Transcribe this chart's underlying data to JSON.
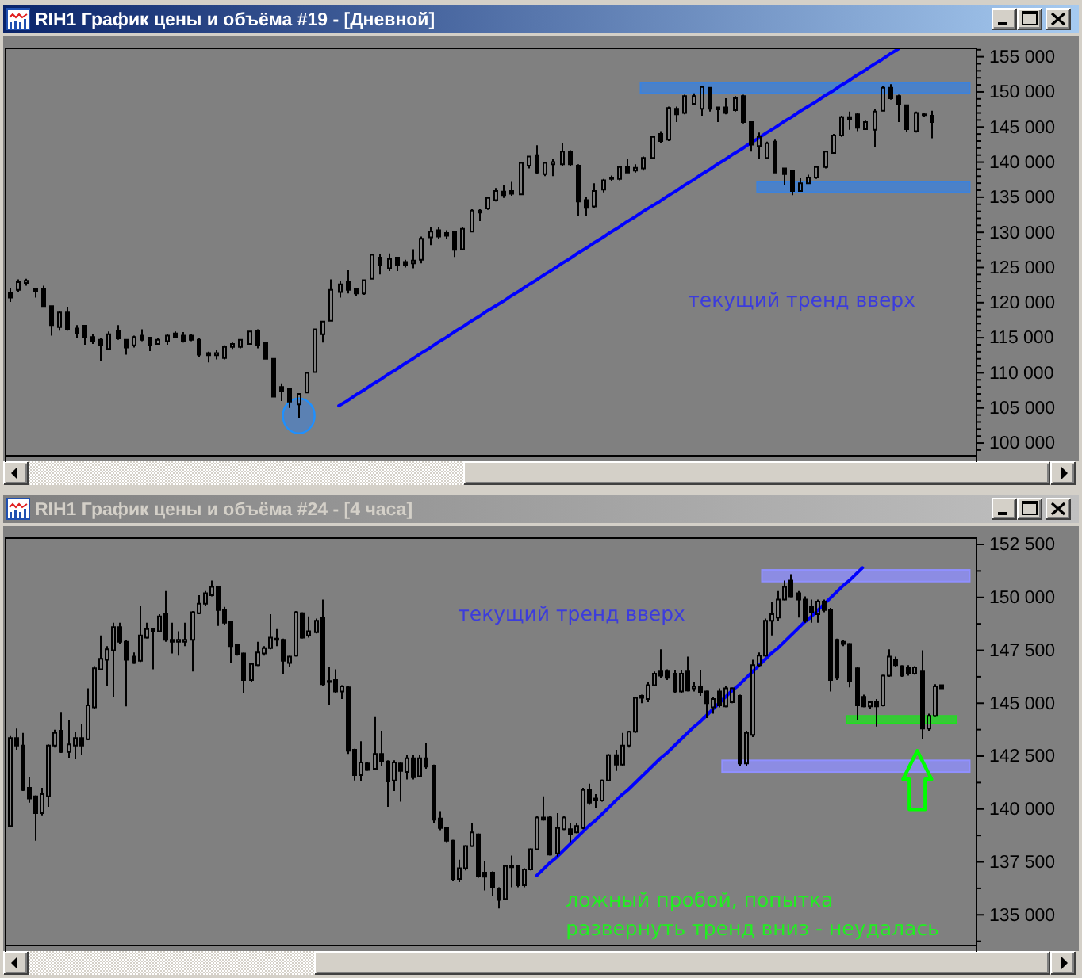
{
  "chart_data": [
    {
      "type": "candlestick",
      "title": "RIH1 График цены и объёма #19 - [Дневной]",
      "color": "#000000",
      "categories": [
        null,
        null,
        null,
        null,
        null,
        null,
        null,
        null,
        null,
        null,
        null,
        null,
        null,
        null,
        null,
        null,
        null,
        null,
        null,
        null,
        null,
        null,
        null,
        null,
        null,
        null,
        null,
        null,
        null,
        null,
        null,
        null,
        null,
        null,
        null,
        null,
        null,
        null,
        null,
        null,
        null,
        null,
        null,
        null,
        null,
        null,
        null,
        null,
        null,
        null,
        null,
        null,
        null,
        null,
        null,
        null,
        null,
        null,
        null,
        null,
        null,
        null,
        null,
        null,
        null,
        null,
        null,
        null,
        null,
        null,
        null,
        null,
        null,
        null,
        null,
        null,
        null,
        null,
        null,
        null,
        null,
        null,
        null,
        null,
        null,
        null,
        null,
        null,
        null,
        null,
        null,
        null,
        null,
        null,
        null,
        null,
        null,
        null,
        null,
        null,
        null,
        null,
        null,
        null,
        null,
        null,
        null,
        null,
        null,
        null,
        null,
        null,
        null,
        null,
        null,
        null,
        null,
        null
      ],
      "ohlc": [
        [
          121400,
          122000,
          120100,
          120700
        ],
        [
          121800,
          123300,
          121500,
          122900
        ],
        [
          122800,
          123400,
          122400,
          123100
        ],
        [
          121900,
          121900,
          120700,
          121600
        ],
        [
          122000,
          122400,
          119400,
          119500
        ],
        [
          119500,
          119600,
          115300,
          116800
        ],
        [
          116500,
          118800,
          116000,
          118600
        ],
        [
          118600,
          119400,
          116000,
          116200
        ],
        [
          116300,
          116800,
          114900,
          115600
        ],
        [
          116700,
          116800,
          114000,
          115000
        ],
        [
          115100,
          115500,
          114100,
          114500
        ],
        [
          114700,
          114900,
          111700,
          114000
        ],
        [
          113400,
          115900,
          113300,
          115500
        ],
        [
          116000,
          116800,
          114700,
          114900
        ],
        [
          114700,
          114800,
          112600,
          113600
        ],
        [
          113900,
          115300,
          113600,
          115100
        ],
        [
          115300,
          116200,
          114500,
          114700
        ],
        [
          115000,
          115100,
          113100,
          114000
        ],
        [
          114100,
          114900,
          114000,
          114700
        ],
        [
          114500,
          115500,
          114000,
          115300
        ],
        [
          115600,
          115900,
          114900,
          115000
        ],
        [
          115300,
          115800,
          114300,
          114500
        ],
        [
          115300,
          115500,
          114500,
          114700
        ],
        [
          114700,
          114900,
          112300,
          112600
        ],
        [
          112800,
          113000,
          111500,
          112500
        ],
        [
          112500,
          113200,
          111900,
          112800
        ],
        [
          112100,
          113900,
          111900,
          113700
        ],
        [
          113700,
          114300,
          113400,
          114100
        ],
        [
          113700,
          114800,
          113500,
          114700
        ],
        [
          114100,
          116000,
          114000,
          115900
        ],
        [
          116000,
          116200,
          113500,
          114000
        ],
        [
          114300,
          114400,
          111900,
          112000
        ],
        [
          112000,
          112100,
          106500,
          106600
        ],
        [
          108000,
          108500,
          106000,
          107400
        ],
        [
          107700,
          107900,
          105000,
          105900
        ],
        [
          105500,
          107100,
          103600,
          107000
        ],
        [
          107200,
          110100,
          107100,
          110000
        ],
        [
          110100,
          116300,
          110000,
          116200
        ],
        [
          115500,
          117400,
          114300,
          117300
        ],
        [
          117400,
          123300,
          117300,
          121800
        ],
        [
          121500,
          123100,
          120700,
          122600
        ],
        [
          123000,
          124600,
          121300,
          121800
        ],
        [
          121900,
          122000,
          120900,
          121300
        ],
        [
          121300,
          123300,
          121100,
          123200
        ],
        [
          123400,
          126900,
          123300,
          126800
        ],
        [
          126400,
          126900,
          124000,
          125400
        ],
        [
          124900,
          127000,
          124500,
          126200
        ],
        [
          126400,
          126500,
          124500,
          125400
        ],
        [
          125800,
          126100,
          125000,
          125400
        ],
        [
          125600,
          127600,
          124900,
          126000
        ],
        [
          126100,
          129400,
          125600,
          129100
        ],
        [
          129300,
          130700,
          128200,
          130100
        ],
        [
          130300,
          130800,
          129100,
          129400
        ],
        [
          129900,
          130300,
          129000,
          129500
        ],
        [
          130100,
          130200,
          126500,
          127500
        ],
        [
          127600,
          130700,
          127500,
          130500
        ],
        [
          130100,
          133300,
          130000,
          133100
        ],
        [
          133100,
          133300,
          131600,
          132800
        ],
        [
          133400,
          135000,
          133200,
          134900
        ],
        [
          134600,
          136300,
          134400,
          135900
        ],
        [
          135800,
          136800,
          134900,
          135300
        ],
        [
          135900,
          137200,
          135200,
          135500
        ],
        [
          135400,
          140000,
          135300,
          139900
        ],
        [
          139500,
          140900,
          139100,
          140800
        ],
        [
          141000,
          142400,
          138300,
          138500
        ],
        [
          138300,
          140000,
          138000,
          139900
        ],
        [
          139700,
          140400,
          138000,
          140000
        ],
        [
          139700,
          142700,
          139500,
          141500
        ],
        [
          141500,
          141700,
          139500,
          139700
        ],
        [
          139500,
          139700,
          132400,
          134400
        ],
        [
          134600,
          135000,
          132400,
          133500
        ],
        [
          133700,
          137000,
          133500,
          135900
        ],
        [
          136100,
          137600,
          135700,
          137400
        ],
        [
          137600,
          138100,
          137300,
          137800
        ],
        [
          137600,
          139400,
          137400,
          139300
        ],
        [
          139300,
          140400,
          138400,
          138500
        ],
        [
          138800,
          139700,
          138500,
          139200
        ],
        [
          139100,
          140800,
          138800,
          140600
        ],
        [
          140600,
          143800,
          140400,
          143600
        ],
        [
          144000,
          144400,
          142700,
          143000
        ],
        [
          143200,
          147900,
          143000,
          147700
        ],
        [
          147600,
          147900,
          145700,
          146800
        ],
        [
          147000,
          149600,
          146800,
          149400
        ],
        [
          148300,
          149800,
          148100,
          149400
        ],
        [
          147600,
          150900,
          146600,
          150700
        ],
        [
          150600,
          150700,
          147200,
          147600
        ],
        [
          147800,
          147900,
          145700,
          147500
        ],
        [
          147800,
          149100,
          146800,
          147000
        ],
        [
          147400,
          149400,
          147200,
          149100
        ],
        [
          149400,
          149600,
          145500,
          145700
        ],
        [
          145700,
          145800,
          141500,
          142500
        ],
        [
          142300,
          144200,
          140400,
          143600
        ],
        [
          140600,
          142900,
          140400,
          142700
        ],
        [
          142900,
          143200,
          138400,
          138500
        ],
        [
          139100,
          139200,
          136700,
          138300
        ],
        [
          138800,
          138900,
          135300,
          135900
        ],
        [
          135900,
          137800,
          135800,
          137000
        ],
        [
          137000,
          138200,
          136900,
          137800
        ],
        [
          137800,
          139500,
          137600,
          139300
        ],
        [
          139300,
          141600,
          139100,
          141500
        ],
        [
          141300,
          144000,
          141200,
          143800
        ],
        [
          143800,
          146600,
          143600,
          146400
        ],
        [
          146400,
          147200,
          144600,
          146100
        ],
        [
          146800,
          147000,
          144400,
          144900
        ],
        [
          144700,
          145900,
          144600,
          145700
        ],
        [
          144600,
          147600,
          142100,
          147200
        ],
        [
          147300,
          150900,
          147200,
          150600
        ],
        [
          150600,
          151100,
          148900,
          149100
        ],
        [
          149400,
          149600,
          145700,
          148200
        ],
        [
          148100,
          148200,
          144300,
          144700
        ],
        [
          144400,
          147200,
          144200,
          147000
        ],
        [
          146700,
          147000,
          146400,
          146800
        ],
        [
          146600,
          147300,
          143400,
          145700
        ],
        null,
        null,
        null,
        null,
        null
      ],
      "ylim": [
        98200,
        156200
      ],
      "yticks": [
        {
          "value": 99000,
          "label": null
        },
        {
          "value": 100000,
          "label": "100 000"
        },
        {
          "value": 101000,
          "label": null
        },
        {
          "value": 102000,
          "label": null
        },
        {
          "value": 103000,
          "label": null
        },
        {
          "value": 104000,
          "label": null
        },
        {
          "value": 105000,
          "label": "105 000"
        },
        {
          "value": 106000,
          "label": null
        },
        {
          "value": 107000,
          "label": null
        },
        {
          "value": 108000,
          "label": null
        },
        {
          "value": 109000,
          "label": null
        },
        {
          "value": 110000,
          "label": "110 000"
        },
        {
          "value": 111000,
          "label": null
        },
        {
          "value": 112000,
          "label": null
        },
        {
          "value": 113000,
          "label": null
        },
        {
          "value": 114000,
          "label": null
        },
        {
          "value": 115000,
          "label": "115 000"
        },
        {
          "value": 116000,
          "label": null
        },
        {
          "value": 117000,
          "label": null
        },
        {
          "value": 118000,
          "label": null
        },
        {
          "value": 119000,
          "label": null
        },
        {
          "value": 120000,
          "label": "120 000"
        },
        {
          "value": 121000,
          "label": null
        },
        {
          "value": 122000,
          "label": null
        },
        {
          "value": 123000,
          "label": null
        },
        {
          "value": 124000,
          "label": null
        },
        {
          "value": 125000,
          "label": "125 000"
        },
        {
          "value": 126000,
          "label": null
        },
        {
          "value": 127000,
          "label": null
        },
        {
          "value": 128000,
          "label": null
        },
        {
          "value": 129000,
          "label": null
        },
        {
          "value": 130000,
          "label": "130 000"
        },
        {
          "value": 131000,
          "label": null
        },
        {
          "value": 132000,
          "label": null
        },
        {
          "value": 133000,
          "label": null
        },
        {
          "value": 134000,
          "label": null
        },
        {
          "value": 135000,
          "label": "135 000"
        },
        {
          "value": 136000,
          "label": null
        },
        {
          "value": 137000,
          "label": null
        },
        {
          "value": 138000,
          "label": null
        },
        {
          "value": 139000,
          "label": null
        },
        {
          "value": 140000,
          "label": "140 000"
        },
        {
          "value": 141000,
          "label": null
        },
        {
          "value": 142000,
          "label": null
        },
        {
          "value": 143000,
          "label": null
        },
        {
          "value": 144000,
          "label": null
        },
        {
          "value": 145000,
          "label": "145 000"
        },
        {
          "value": 146000,
          "label": null
        },
        {
          "value": 147000,
          "label": null
        },
        {
          "value": 148000,
          "label": null
        },
        {
          "value": 149000,
          "label": null
        },
        {
          "value": 150000,
          "label": "150 000"
        },
        {
          "value": 151000,
          "label": null
        },
        {
          "value": 152000,
          "label": null
        },
        {
          "value": 153000,
          "label": null
        },
        {
          "value": 154000,
          "label": null
        },
        {
          "value": 155000,
          "label": "155 000"
        },
        {
          "value": 156000,
          "label": null
        }
      ],
      "tick_labels": "y",
      "bands": [
        {
          "axis": "y",
          "from": 149800,
          "to": 151300,
          "color": "#3c82dc"
        },
        {
          "axis": "y",
          "from": 135700,
          "to": 137200,
          "color": "#3c82dc"
        }
      ],
      "series": [
        {
          "type": "line",
          "color": "#0000ff",
          "values": [
            null,
            null,
            null,
            null,
            null,
            null,
            null,
            null,
            null,
            null,
            null,
            null,
            null,
            null,
            null,
            null,
            null,
            null,
            null,
            null,
            null,
            null,
            null,
            null,
            null,
            null,
            null,
            null,
            null,
            null,
            null,
            null,
            null,
            null,
            null,
            null,
            null,
            null,
            null,
            null,
            105300,
            106000,
            106800,
            107500,
            108300,
            109000,
            109800,
            110500,
            111300,
            112000,
            112800,
            113500,
            114300,
            115000,
            115800,
            116500,
            117300,
            118000,
            118800,
            119500,
            120200,
            121000,
            121700,
            122500,
            123200,
            124000,
            124700,
            125500,
            126200,
            127000,
            127700,
            128500,
            129200,
            130000,
            130700,
            131500,
            132200,
            133000,
            133700,
            134400,
            135200,
            135900,
            136700,
            137400,
            138200,
            138900,
            139700,
            140400,
            141200,
            141900,
            142700,
            143400,
            144200,
            144900,
            145700,
            146400,
            147200,
            147900,
            148600,
            149400,
            150100,
            150900,
            151600,
            152400,
            153100,
            153900,
            154600,
            155400,
            156100,
            null,
            null,
            null,
            null,
            null,
            null,
            null,
            null,
            null
          ]
        }
      ],
      "annotations": [
        "текущий тренд вверх"
      ]
    },
    {
      "type": "candlestick",
      "title": "RIH1 График цены и объёма #24 - [4 часа]",
      "color": "#000000",
      "categories": [
        null,
        null,
        null,
        null,
        null,
        null,
        null,
        null,
        null,
        null,
        null,
        null,
        null,
        null,
        null,
        null,
        null,
        null,
        null,
        null,
        null,
        null,
        null,
        null,
        null,
        null,
        null,
        null,
        null,
        null,
        null,
        null,
        null,
        null,
        null,
        null,
        null,
        null,
        null,
        null,
        null,
        null,
        null,
        null,
        null,
        null,
        null,
        null,
        null,
        null,
        null,
        null,
        null,
        null,
        null,
        null,
        null,
        null,
        null,
        null,
        null,
        null,
        null,
        null,
        null,
        null,
        null,
        null,
        null,
        null,
        null,
        null,
        null,
        null,
        null,
        null,
        null,
        null,
        null,
        null,
        null,
        null,
        null,
        null,
        null,
        null,
        null,
        null,
        null,
        null,
        null,
        null,
        null,
        null,
        null,
        null,
        null,
        null,
        null,
        null,
        null,
        null,
        null,
        null,
        null,
        null,
        null,
        null,
        null,
        null,
        null,
        null,
        null,
        null,
        null,
        null,
        null,
        null,
        null,
        null,
        null,
        null,
        null,
        null,
        null,
        null,
        null,
        null,
        null,
        null,
        null,
        null,
        null,
        null,
        null,
        null,
        null,
        null,
        null,
        null,
        null,
        null,
        null,
        null,
        null,
        null,
        null,
        null,
        null
      ],
      "ohlc": [
        [
          139200,
          143450,
          139150,
          143350
        ],
        [
          143350,
          143800,
          142800,
          143000
        ],
        [
          143000,
          143600,
          140850,
          140900
        ],
        [
          141000,
          141500,
          140300,
          140500
        ],
        [
          140600,
          140650,
          138500,
          139800
        ],
        [
          139800,
          141000,
          139700,
          140700
        ],
        [
          140600,
          143050,
          140100,
          143000
        ],
        [
          143000,
          143750,
          142900,
          143600
        ],
        [
          143700,
          144550,
          142650,
          142700
        ],
        [
          142700,
          144200,
          142400,
          143050
        ],
        [
          143000,
          143650,
          142350,
          143350
        ],
        [
          143350,
          144000,
          142550,
          143000
        ],
        [
          143300,
          145700,
          143250,
          144900
        ],
        [
          144800,
          146750,
          144750,
          146650
        ],
        [
          146600,
          148200,
          146550,
          147100
        ],
        [
          147050,
          147700,
          145800,
          147550
        ],
        [
          147500,
          148800,
          145300,
          148600
        ],
        [
          148600,
          148800,
          147800,
          147900
        ],
        [
          147900,
          148000,
          144850,
          147050
        ],
        [
          147200,
          147400,
          146850,
          146900
        ],
        [
          147000,
          149600,
          146950,
          148200
        ],
        [
          148100,
          148800,
          148050,
          148500
        ],
        [
          148500,
          148550,
          146600,
          148400
        ],
        [
          148400,
          149200,
          148350,
          149100
        ],
        [
          149200,
          150300,
          147900,
          148000
        ],
        [
          148000,
          148800,
          147350,
          147900
        ],
        [
          147900,
          148400,
          147250,
          148000
        ],
        [
          147900,
          148800,
          147700,
          148000
        ],
        [
          148000,
          149350,
          146500,
          149300
        ],
        [
          149250,
          150100,
          149200,
          149700
        ],
        [
          149700,
          150300,
          149600,
          150200
        ],
        [
          150100,
          150800,
          150050,
          150500
        ],
        [
          150500,
          150550,
          148650,
          149400
        ],
        [
          149400,
          149550,
          148700,
          148800
        ],
        [
          148850,
          148900,
          146900,
          147700
        ],
        [
          147750,
          147800,
          147250,
          147300
        ],
        [
          147350,
          147400,
          145500,
          146100
        ],
        [
          146100,
          146900,
          146000,
          146850
        ],
        [
          146800,
          147900,
          146750,
          147400
        ],
        [
          147350,
          147700,
          147250,
          147600
        ],
        [
          147600,
          149200,
          147550,
          148100
        ],
        [
          148000,
          148500,
          147700,
          148050
        ],
        [
          148000,
          148050,
          146400,
          147000
        ],
        [
          146900,
          147250,
          146700,
          147200
        ],
        [
          147250,
          149350,
          147200,
          149300
        ],
        [
          149250,
          149300,
          148050,
          148100
        ],
        [
          148200,
          149100,
          148100,
          148400
        ],
        [
          148350,
          149000,
          148300,
          148900
        ],
        [
          149050,
          149900,
          145800,
          145900
        ],
        [
          146050,
          146700,
          144900,
          146000
        ],
        [
          146100,
          146600,
          145500,
          145550
        ],
        [
          145550,
          145850,
          145200,
          145800
        ],
        [
          145750,
          145800,
          142600,
          142750
        ],
        [
          142800,
          142850,
          141350,
          141600
        ],
        [
          141600,
          143200,
          141300,
          142200
        ],
        [
          142150,
          142200,
          141800,
          141850
        ],
        [
          141900,
          144350,
          141850,
          142600
        ],
        [
          142600,
          143700,
          142050,
          142250
        ],
        [
          142250,
          142300,
          140100,
          141300
        ],
        [
          141350,
          142300,
          140850,
          142200
        ],
        [
          142150,
          142200,
          140350,
          141800
        ],
        [
          141750,
          142550,
          141400,
          142400
        ],
        [
          142400,
          142550,
          141400,
          141500
        ],
        [
          141550,
          142550,
          141500,
          142400
        ],
        [
          142400,
          143100,
          141900,
          142000
        ],
        [
          142050,
          142100,
          139350,
          139500
        ],
        [
          139550,
          139900,
          139000,
          139100
        ],
        [
          139100,
          139150,
          138400,
          138500
        ],
        [
          138500,
          138550,
          136600,
          136700
        ],
        [
          136700,
          137600,
          136550,
          137200
        ],
        [
          137200,
          138300,
          137100,
          138250
        ],
        [
          138250,
          139350,
          138200,
          138900
        ],
        [
          138800,
          138850,
          136750,
          136850
        ],
        [
          137000,
          137550,
          136150,
          136800
        ],
        [
          137000,
          137050,
          135900,
          136300
        ],
        [
          136250,
          136300,
          135300,
          135700
        ],
        [
          135750,
          137350,
          135700,
          137300
        ],
        [
          137250,
          137800,
          136300,
          137300
        ],
        [
          137300,
          137350,
          136300,
          136400
        ],
        [
          136400,
          137200,
          136300,
          137150
        ],
        [
          137150,
          138150,
          137100,
          138100
        ],
        [
          138100,
          139650,
          138050,
          139600
        ],
        [
          139600,
          140600,
          139450,
          139500
        ],
        [
          139600,
          139650,
          137800,
          137850
        ],
        [
          137900,
          139800,
          137750,
          139100
        ],
        [
          139050,
          139650,
          139000,
          139600
        ],
        [
          139050,
          139350,
          138400,
          138800
        ],
        [
          138900,
          139350,
          138850,
          139200
        ],
        [
          139100,
          141000,
          139050,
          140900
        ],
        [
          140900,
          141200,
          140200,
          140300
        ],
        [
          140500,
          140700,
          140050,
          140400
        ],
        [
          140400,
          141400,
          140350,
          141350
        ],
        [
          141350,
          142600,
          141300,
          142550
        ],
        [
          142550,
          142800,
          141800,
          142100
        ],
        [
          142100,
          143600,
          142050,
          143000
        ],
        [
          143000,
          143700,
          142900,
          143650
        ],
        [
          143650,
          145300,
          143600,
          145250
        ],
        [
          145250,
          145400,
          145000,
          145350
        ],
        [
          145200,
          146000,
          145050,
          145850
        ],
        [
          145850,
          146500,
          145800,
          146400
        ],
        [
          146500,
          147550,
          146200,
          146300
        ],
        [
          146500,
          146600,
          146100,
          146200
        ],
        [
          146400,
          146550,
          145500,
          145550
        ],
        [
          145550,
          146550,
          145500,
          146400
        ],
        [
          146500,
          147200,
          145550,
          145600
        ],
        [
          145700,
          146000,
          145550,
          145800
        ],
        [
          145800,
          146550,
          145350,
          145500
        ],
        [
          145550,
          145600,
          144300,
          145000
        ],
        [
          144800,
          145300,
          144500,
          145200
        ],
        [
          145550,
          145700,
          144800,
          144900
        ],
        [
          144850,
          145800,
          144800,
          145700
        ],
        [
          145050,
          145750,
          145000,
          145700
        ],
        [
          145350,
          145400,
          142050,
          142150
        ],
        [
          142150,
          143700,
          142050,
          143600
        ],
        [
          143500,
          147050,
          143400,
          146800
        ],
        [
          146800,
          147400,
          146700,
          147250
        ],
        [
          147250,
          149000,
          147200,
          148900
        ],
        [
          148900,
          149800,
          148200,
          149200
        ],
        [
          149050,
          150300,
          148900,
          149900
        ],
        [
          149900,
          150800,
          149850,
          150500
        ],
        [
          150800,
          151100,
          150000,
          150050
        ],
        [
          150200,
          150300,
          149050,
          149900
        ],
        [
          149900,
          150050,
          148800,
          148900
        ],
        [
          149550,
          149900,
          148800,
          149300
        ],
        [
          149200,
          149900,
          148800,
          149800
        ],
        [
          149800,
          149900,
          149300,
          149400
        ],
        [
          149400,
          149500,
          145550,
          146100
        ],
        [
          148000,
          148050,
          146100,
          146200
        ],
        [
          147900,
          148000,
          147700,
          147800
        ],
        [
          147800,
          147850,
          145750,
          146050
        ],
        [
          146650,
          146700,
          144200,
          144900
        ],
        [
          145300,
          145400,
          144800,
          144850
        ],
        [
          144850,
          145100,
          144750,
          145050
        ],
        [
          145050,
          145200,
          143900,
          144850
        ],
        [
          144900,
          146350,
          144850,
          146300
        ],
        [
          146300,
          147550,
          146250,
          147200
        ],
        [
          147050,
          147200,
          146700,
          146800
        ],
        [
          146750,
          146800,
          146250,
          146300
        ],
        [
          146700,
          146800,
          146300,
          146400
        ],
        [
          146400,
          146750,
          146350,
          146700
        ],
        [
          146500,
          147500,
          143300,
          143800
        ],
        [
          143800,
          144500,
          143700,
          144400
        ],
        [
          144400,
          145900,
          144350,
          145800
        ],
        [
          145850,
          145850,
          145700,
          145700
        ],
        null,
        null,
        null,
        null,
        null
      ],
      "ylim": [
        133550,
        152800
      ],
      "yticks": [
        {
          "value": 133750,
          "label": null
        },
        {
          "value": 135000,
          "label": "135 000"
        },
        {
          "value": 136250,
          "label": null
        },
        {
          "value": 137500,
          "label": "137 500"
        },
        {
          "value": 138750,
          "label": null
        },
        {
          "value": 140000,
          "label": "140 000"
        },
        {
          "value": 141250,
          "label": null
        },
        {
          "value": 142500,
          "label": "142 500"
        },
        {
          "value": 143750,
          "label": null
        },
        {
          "value": 145000,
          "label": "145 000"
        },
        {
          "value": 146250,
          "label": null
        },
        {
          "value": 147500,
          "label": "147 500"
        },
        {
          "value": 148750,
          "label": null
        },
        {
          "value": 150000,
          "label": "150 000"
        },
        {
          "value": 151250,
          "label": null
        },
        {
          "value": 152500,
          "label": "152 500"
        }
      ],
      "tick_labels": "y",
      "bands": [
        {
          "axis": "y",
          "from": 150750,
          "to": 151300,
          "color": "#9090ff"
        },
        {
          "axis": "y",
          "from": 141750,
          "to": 142300,
          "color": "#9090ff"
        },
        {
          "axis": "y",
          "from": 144050,
          "to": 144400,
          "color": "#22dd22"
        }
      ],
      "series": [
        {
          "type": "line",
          "color": "#0000ff",
          "values": [
            null,
            null,
            null,
            null,
            null,
            null,
            null,
            null,
            null,
            null,
            null,
            null,
            null,
            null,
            null,
            null,
            null,
            null,
            null,
            null,
            null,
            null,
            null,
            null,
            null,
            null,
            null,
            null,
            null,
            null,
            null,
            null,
            null,
            null,
            null,
            null,
            null,
            null,
            null,
            null,
            null,
            null,
            null,
            null,
            null,
            null,
            null,
            null,
            null,
            null,
            null,
            null,
            null,
            null,
            null,
            null,
            null,
            null,
            null,
            null,
            null,
            null,
            null,
            null,
            null,
            null,
            null,
            null,
            null,
            null,
            null,
            null,
            null,
            null,
            null,
            null,
            null,
            null,
            null,
            null,
            null,
            136850,
            137150,
            137450,
            137700,
            138000,
            138300,
            138600,
            138900,
            139200,
            139450,
            139750,
            140050,
            140350,
            140650,
            140900,
            141200,
            141500,
            141800,
            142100,
            142400,
            142650,
            142950,
            143250,
            143550,
            143850,
            144100,
            144400,
            144700,
            145000,
            145300,
            145600,
            145850,
            146150,
            146450,
            146750,
            147050,
            147350,
            147600,
            147900,
            148200,
            148500,
            148800,
            149050,
            149350,
            149650,
            149950,
            150250,
            150550,
            150800,
            151100,
            151400,
            null,
            null,
            null,
            null,
            null,
            null,
            null,
            null,
            null,
            null,
            null,
            null,
            null,
            null,
            null,
            null,
            null
          ]
        }
      ],
      "annotations": [
        "текущий тренд вверх",
        "ложный пробой, попытка\nразвернуть тренд вниз - неудалась"
      ]
    }
  ]
}
